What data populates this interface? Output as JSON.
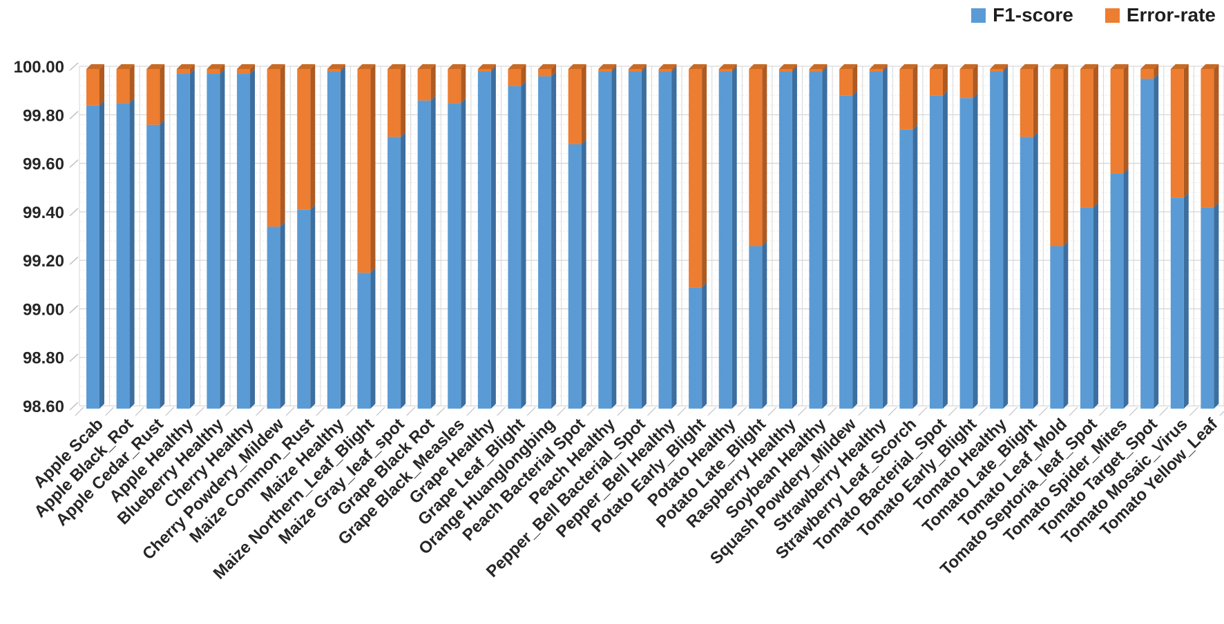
{
  "legend": {
    "items": [
      {
        "label": "F1-score",
        "color": "#5B9BD5"
      },
      {
        "label": "Error-rate",
        "color": "#ED7D31"
      }
    ]
  },
  "chart_data": {
    "type": "bar",
    "subtype": "stacked-3d-column",
    "title": "",
    "xlabel": "",
    "ylabel": "",
    "ylim": [
      98.6,
      100.0
    ],
    "y_major_step": 0.2,
    "y_minor_step": 0.04,
    "grid": true,
    "legend_position": "top-right",
    "y_tick_labels": [
      "100.00",
      "99.80",
      "99.60",
      "99.40",
      "99.20",
      "99.00",
      "98.80",
      "98.60"
    ],
    "categories": [
      "Apple Scab",
      "Apple Black_Rot",
      "Apple Cedar_Rust",
      "Apple Healthy",
      "Blueberry Healthy",
      "Cherry Healthy",
      "Cherry Powdery_Mildew",
      "Maize Common_Rust",
      "Maize Healthy",
      "Maize Northern_Leaf_Blight",
      "Maize Gray_leaf_spot",
      "Grape Black Rot",
      "Grape Black_Measles",
      "Grape Healthy",
      "Grape Leaf_Blight",
      "Orange Huanglongbing",
      "Peach Bacterial Spot",
      "Peach Healthy",
      "Pepper_Bell Bacterial_Spot",
      "Pepper_Bell Healthy",
      "Potato Early_Blight",
      "Potato Healthy",
      "Potato Late_Blight",
      "Raspberry Healthy",
      "Soybean Healthy",
      "Squash Powdery_Mildew",
      "Strawberry Healthy",
      "Strawberry Leaf_Scorch",
      "Tomato Bacterial_Spot",
      "Tomato Early_Blight",
      "Tomato Healthy",
      "Tomato Late_Blight",
      "Tomato Leaf_Mold",
      "Tomato Septoria_leaf_Spot",
      "Tomato Spider_Mites",
      "Tomato Target_Spot",
      "Tomato Mosaic_Virus",
      "Tomato Yellow_Leaf"
    ],
    "series": [
      {
        "name": "F1-score",
        "color": "#5B9BD5",
        "side_color": "#3C6E9F",
        "values": [
          99.85,
          99.86,
          99.77,
          99.98,
          99.98,
          99.98,
          99.35,
          99.42,
          99.99,
          99.16,
          99.72,
          99.87,
          99.86,
          99.99,
          99.93,
          99.97,
          99.69,
          99.99,
          99.99,
          99.99,
          99.1,
          99.99,
          99.27,
          99.99,
          99.99,
          99.89,
          99.99,
          99.75,
          99.89,
          99.88,
          99.99,
          99.72,
          99.27,
          99.43,
          99.57,
          99.96,
          99.47,
          99.43
        ]
      },
      {
        "name": "Error-rate",
        "color": "#ED7D31",
        "side_color": "#AE5A21",
        "top_color": "#C96A24",
        "values": [
          0.15,
          0.14,
          0.23,
          0.02,
          0.02,
          0.02,
          0.65,
          0.58,
          0.01,
          0.84,
          0.28,
          0.13,
          0.14,
          0.01,
          0.07,
          0.03,
          0.31,
          0.01,
          0.01,
          0.01,
          0.9,
          0.01,
          0.73,
          0.01,
          0.01,
          0.11,
          0.01,
          0.25,
          0.11,
          0.12,
          0.01,
          0.28,
          0.73,
          0.57,
          0.43,
          0.04,
          0.53,
          0.57
        ]
      }
    ],
    "axis_text_color": "#262626",
    "grid_major_color": "#D6D6D6",
    "grid_minor_color": "#E7E7E7",
    "tick_mark_color": "#C0C0C0"
  }
}
